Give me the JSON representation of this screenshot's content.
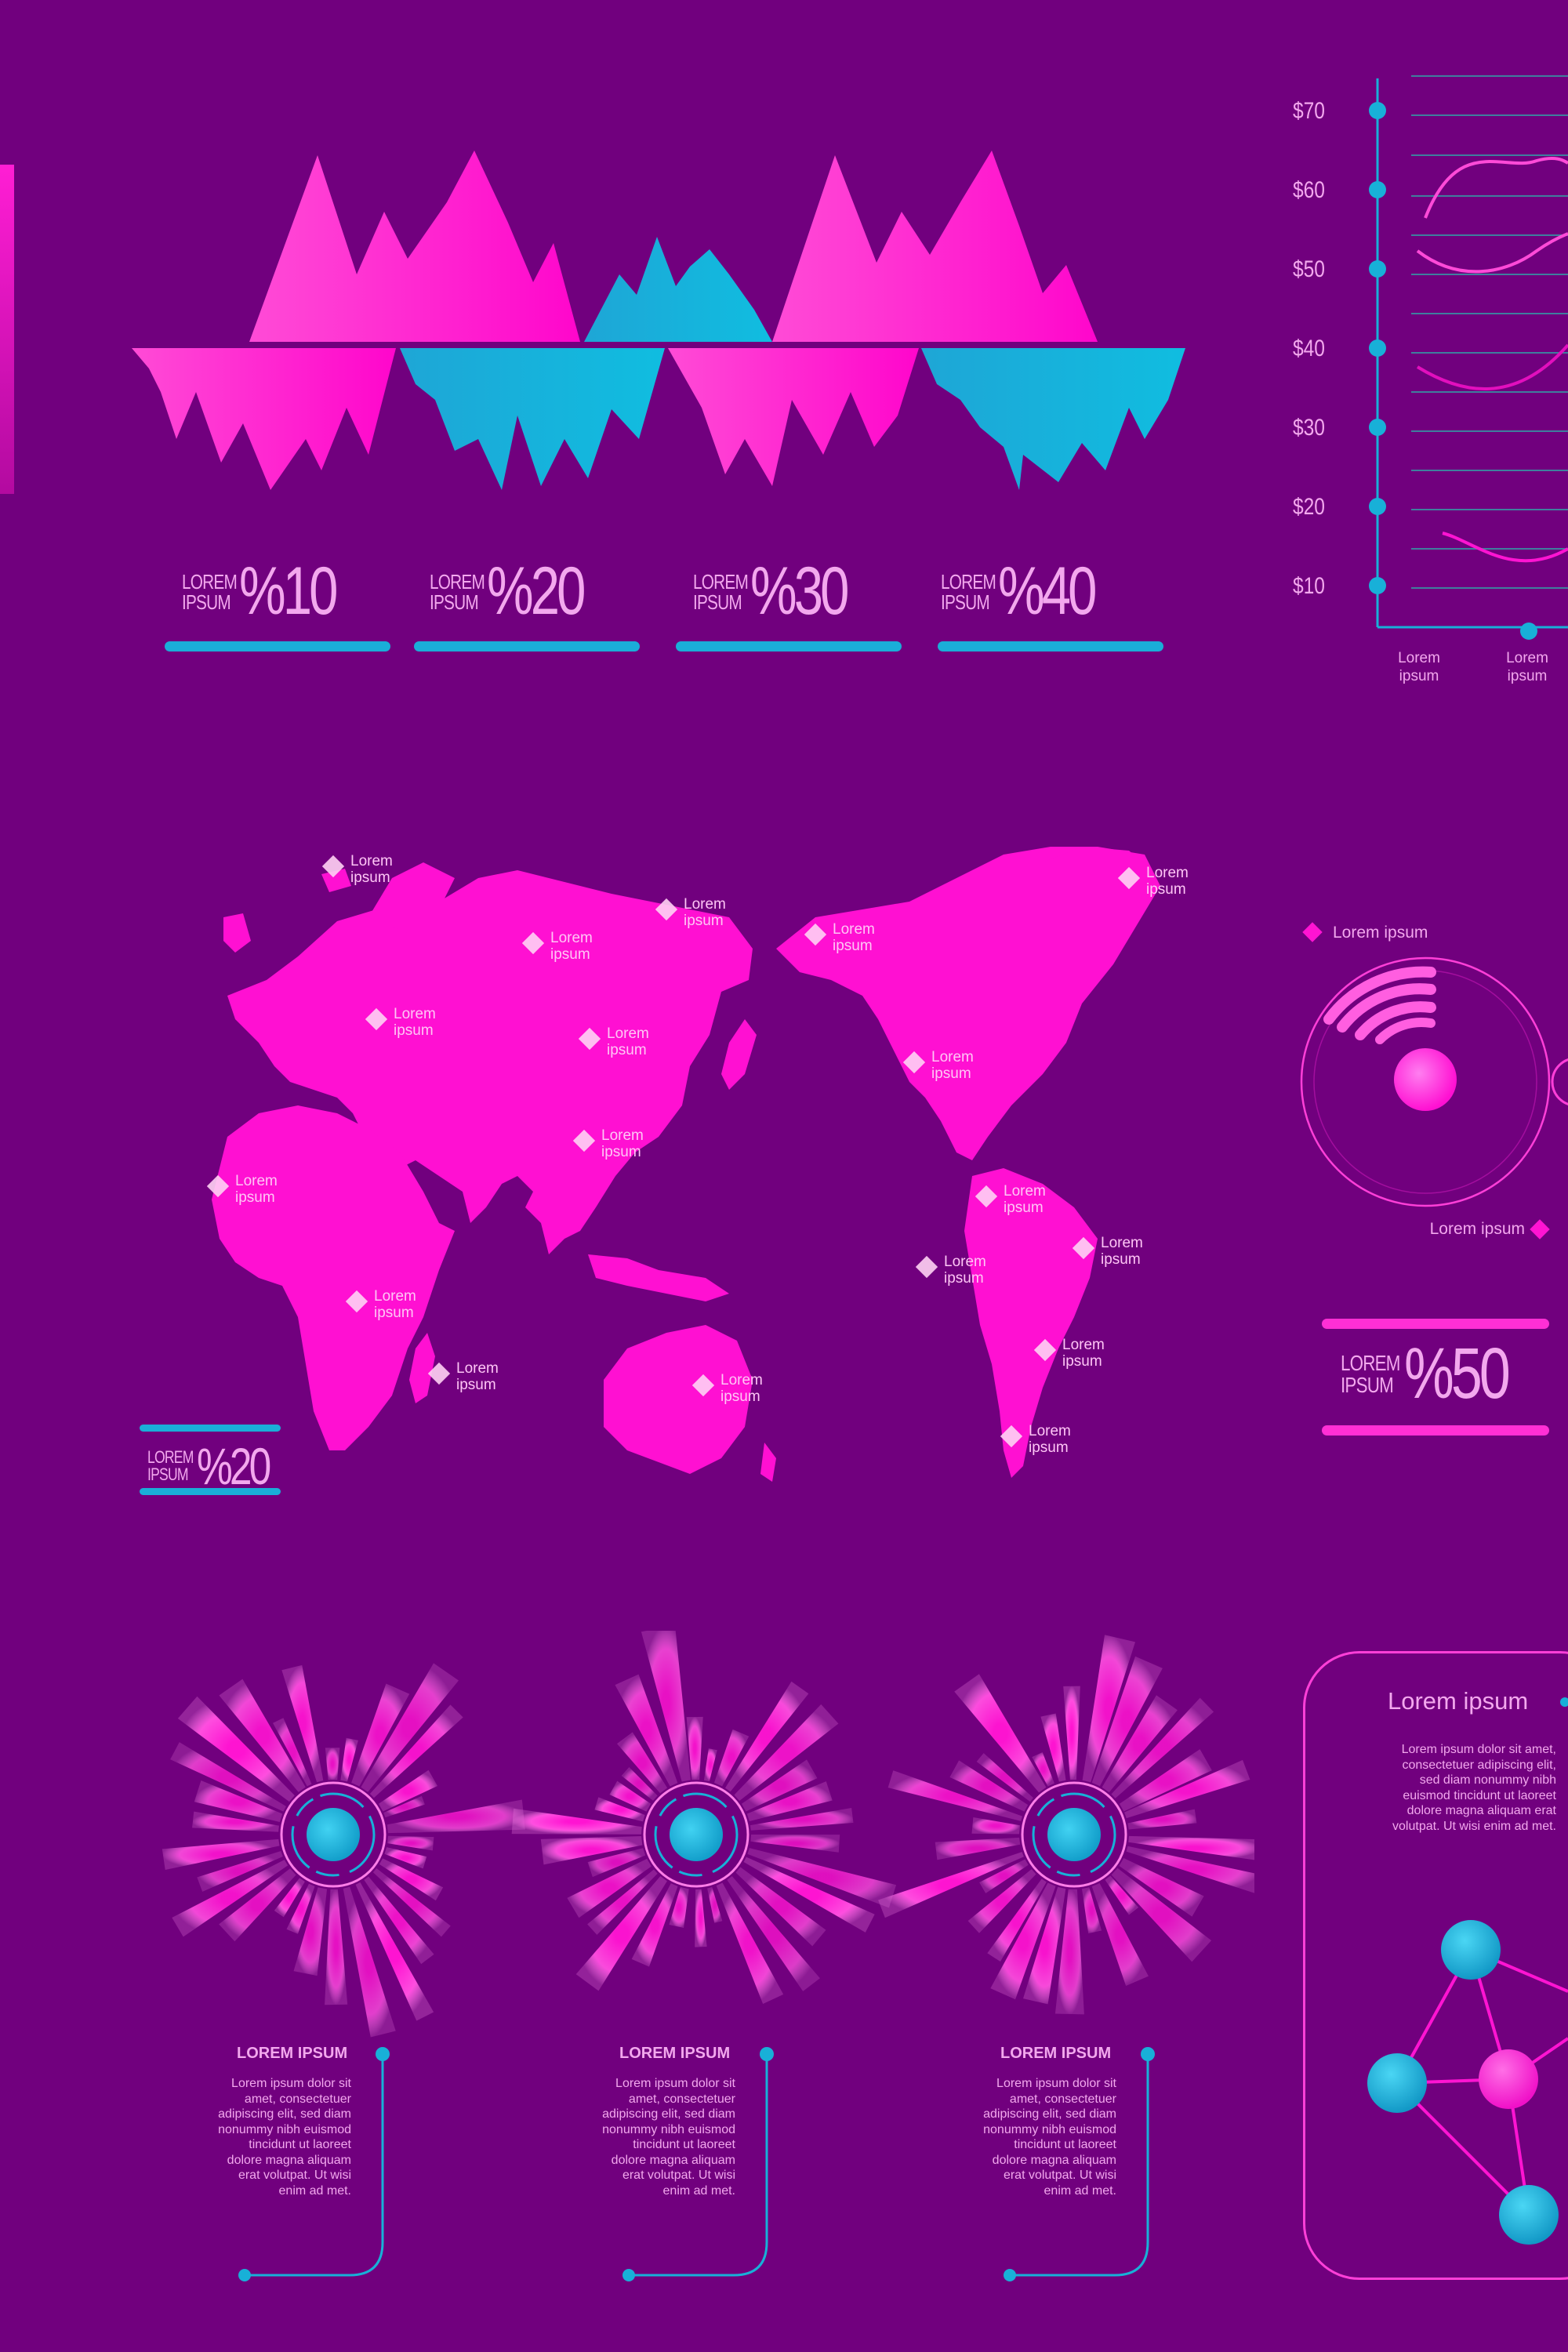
{
  "colors": {
    "background": "#71007e",
    "pink": "#ff14d2",
    "cyan": "#18b0d8",
    "text": "#f3a8ee"
  },
  "top_stats": [
    {
      "small_l1": "LOREM",
      "small_l2": "IPSUM",
      "value": "%10"
    },
    {
      "small_l1": "LOREM",
      "small_l2": "IPSUM",
      "value": "%20"
    },
    {
      "small_l1": "LOREM",
      "small_l2": "IPSUM",
      "value": "%30"
    },
    {
      "small_l1": "LOREM",
      "small_l2": "IPSUM",
      "value": "%40"
    }
  ],
  "map": {
    "labels": [
      "Lorem ipsum",
      "Lorem ipsum",
      "Lorem ipsum",
      "Lorem ipsum",
      "Lorem ipsum",
      "Lorem ipsum",
      "Lorem ipsum",
      "Lorem ipsum",
      "Lorem ipsum",
      "Lorem ipsum",
      "Lorem ipsum",
      "Lorem ipsum",
      "Lorem ipsum",
      "Lorem ipsum",
      "Lorem ipsum",
      "Lorem ipsum",
      "Lorem ipsum",
      "Lorem ipsum"
    ],
    "stat": {
      "small_l1": "LOREM",
      "small_l2": "IPSUM",
      "value": "%20"
    }
  },
  "radial_gauge": {
    "label_top": "Lorem ipsum",
    "label_bottom": "Lorem ipsum",
    "stat": {
      "small_l1": "LOREM",
      "small_l2": "IPSUM",
      "value": "%50"
    }
  },
  "bursts": [
    {
      "title": "LOREM IPSUM",
      "body": "Lorem ipsum dolor sit amet, consectetuer adipiscing elit, sed diam nonummy nibh euismod tincidunt ut laoreet dolore magna aliquam erat volutpat. Ut wisi enim ad met."
    },
    {
      "title": "LOREM IPSUM",
      "body": "Lorem ipsum dolor sit amet, consectetuer adipiscing elit, sed diam nonummy nibh euismod tincidunt ut laoreet dolore magna aliquam erat volutpat. Ut wisi enim ad met."
    },
    {
      "title": "LOREM IPSUM",
      "body": "Lorem ipsum dolor sit amet, consectetuer adipiscing elit, sed diam nonummy nibh euismod tincidunt ut laoreet dolore magna aliquam erat volutpat. Ut wisi enim ad met."
    }
  ],
  "network_card": {
    "title": "Lorem ipsum",
    "body": "Lorem ipsum dolor sit amet, consectetuer adipiscing elit, sed diam nonummy nibh euismod tincidunt ut laoreet dolore magna aliquam erat volutpat. Ut wisi enim ad met."
  },
  "chart_data": {
    "type": "line",
    "y_ticks": [
      "$70",
      "$60",
      "$50",
      "$40",
      "$30",
      "$20",
      "$10"
    ],
    "ylim": [
      10,
      70
    ],
    "x_ticks": [
      "Lorem ipsum",
      "Lorem ipsum"
    ]
  }
}
